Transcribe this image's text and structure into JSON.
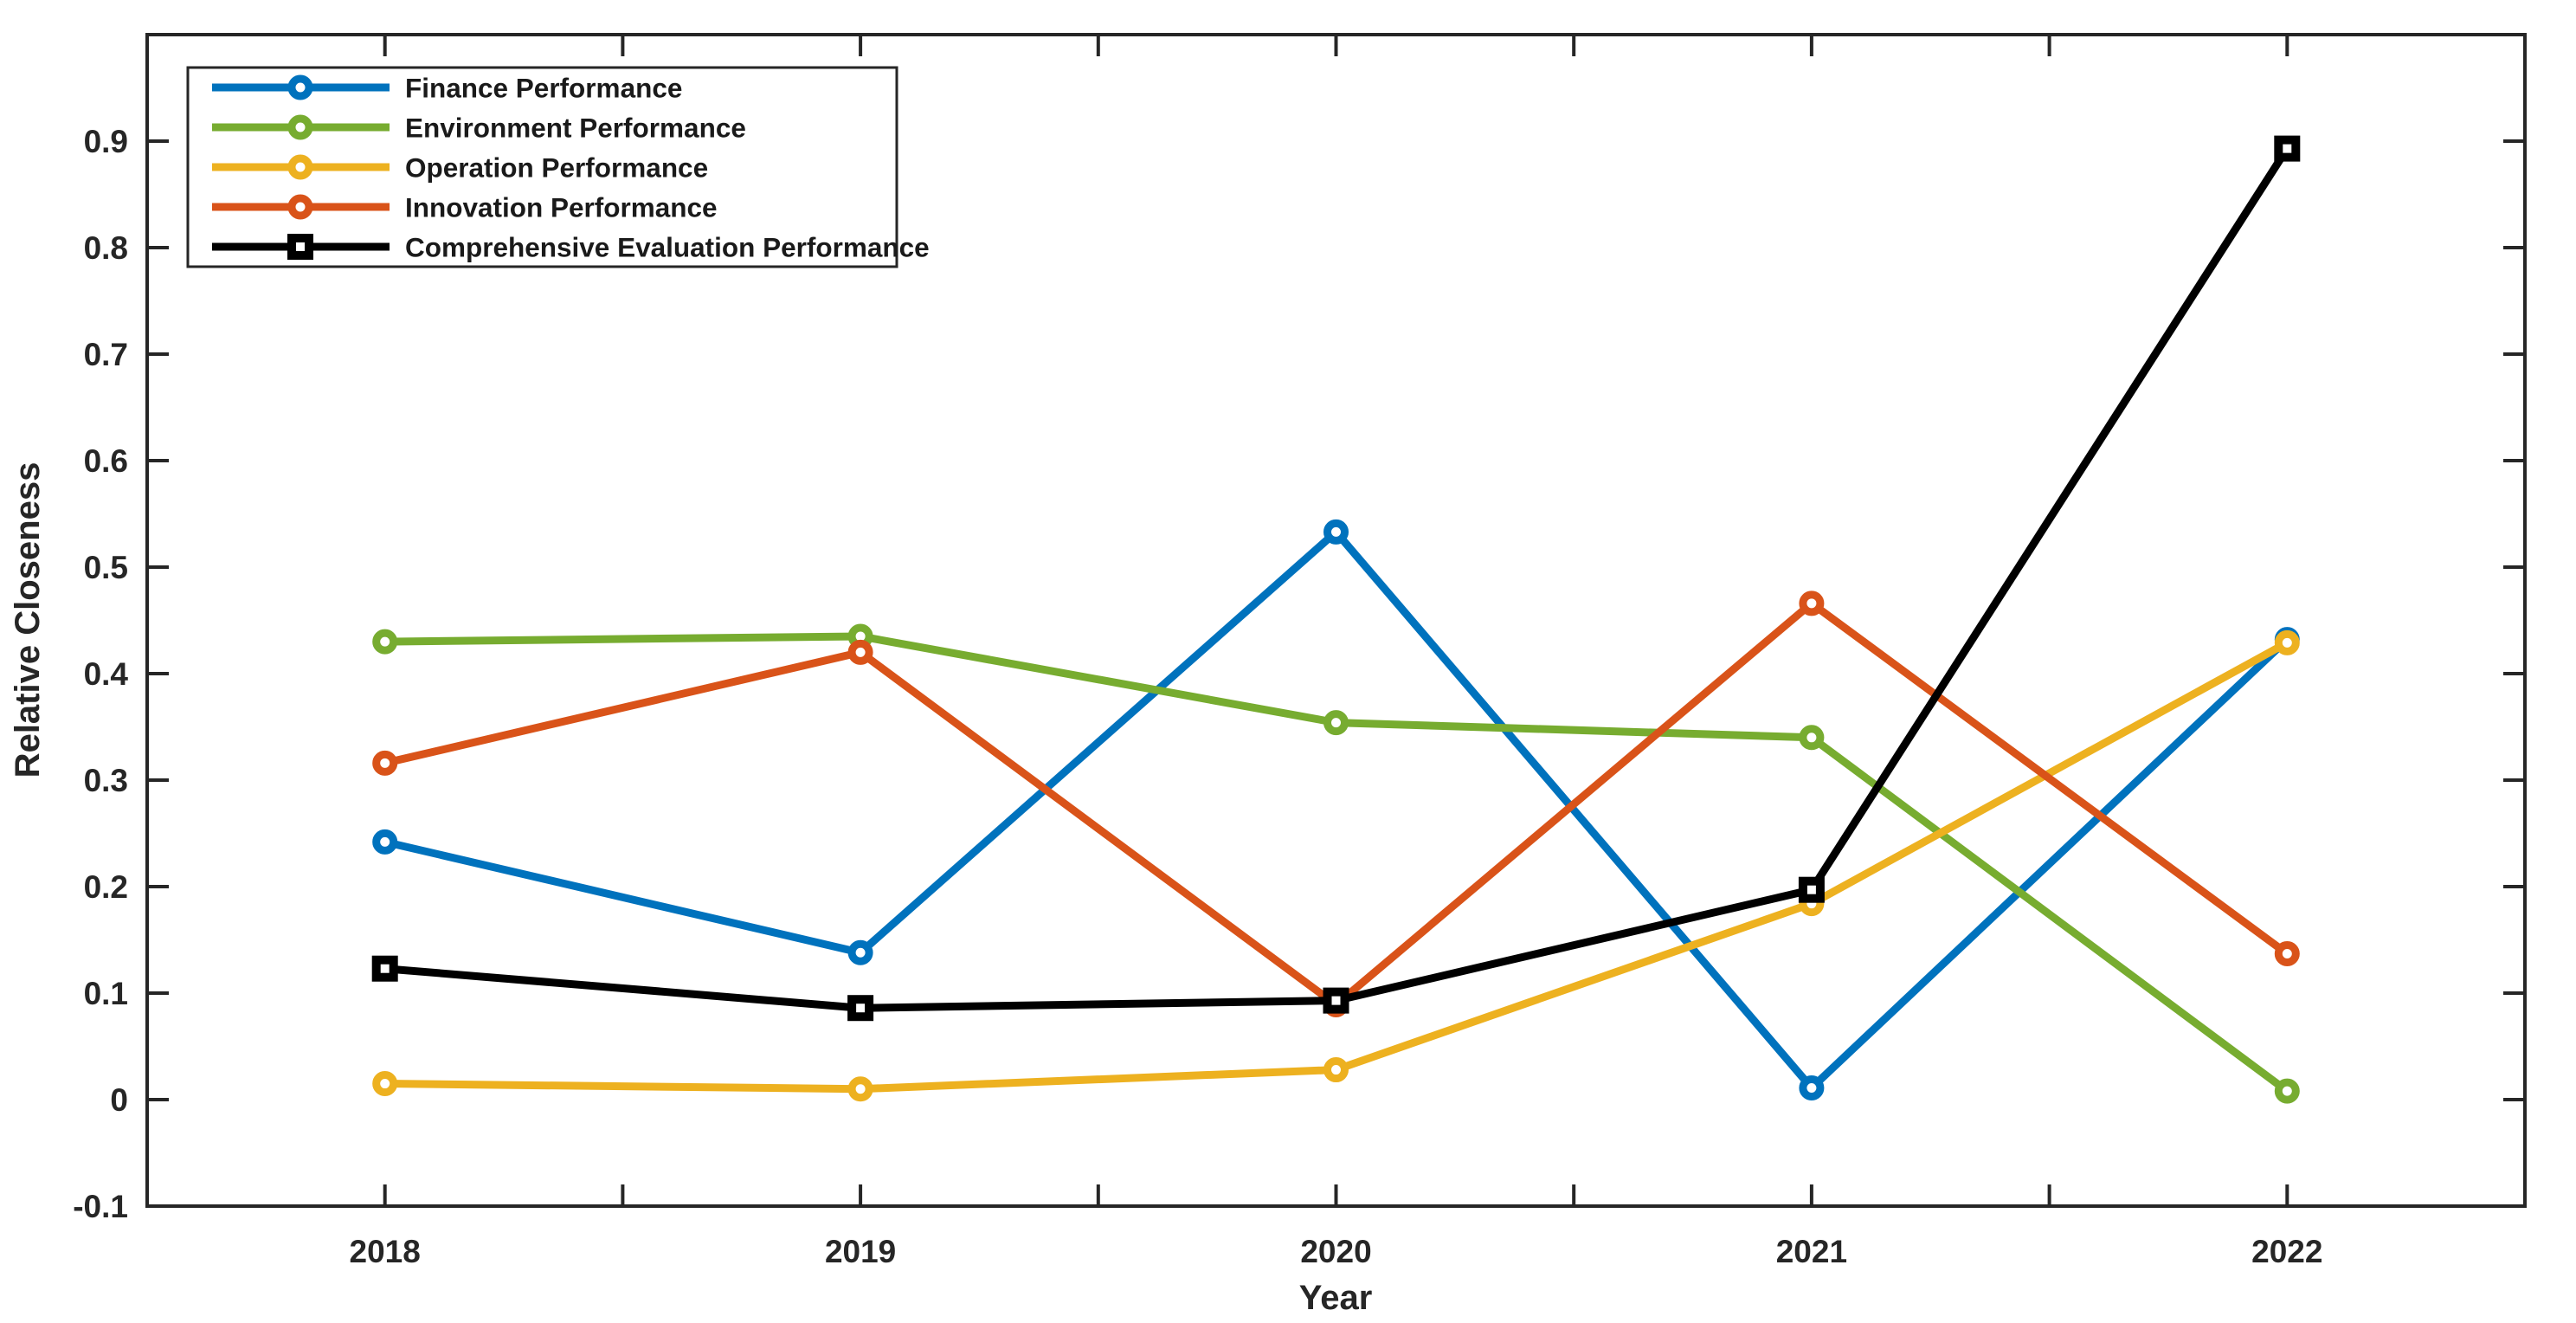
{
  "figure": {
    "background": "#ffffff",
    "axis_color": "#262626",
    "tick_label_color": "#262626"
  },
  "chart_data": {
    "type": "line",
    "title": "",
    "xlabel": "Year",
    "ylabel": "Relative Closeness",
    "x": [
      2018,
      2019,
      2020,
      2021,
      2022
    ],
    "xtick_labels": [
      "2018",
      "2019",
      "2020",
      "2021",
      "2022"
    ],
    "minor_xtick_step": 0.5,
    "xlim": [
      2017.5,
      2022.5
    ],
    "ylim": [
      -0.1,
      1.0
    ],
    "yticks": [
      -0.1,
      0,
      0.1,
      0.2,
      0.3,
      0.4,
      0.5,
      0.6,
      0.7,
      0.8,
      0.9
    ],
    "ytick_labels": [
      "-0.1",
      "0",
      "0.1",
      "0.2",
      "0.3",
      "0.4",
      "0.5",
      "0.6",
      "0.7",
      "0.8",
      "0.9"
    ],
    "grid": false,
    "legend_position": "top-left",
    "series": [
      {
        "name": "Finance Performance",
        "color": "#0072BD",
        "marker": "circle",
        "values": [
          0.242,
          0.138,
          0.533,
          0.011,
          0.432
        ]
      },
      {
        "name": "Environment Performance",
        "color": "#77AC30",
        "marker": "circle",
        "values": [
          0.43,
          0.435,
          0.354,
          0.34,
          0.008
        ]
      },
      {
        "name": "Operation Performance",
        "color": "#EDB120",
        "marker": "circle",
        "values": [
          0.015,
          0.01,
          0.028,
          0.184,
          0.429
        ]
      },
      {
        "name": "Innovation Performance",
        "color": "#D95319",
        "marker": "circle",
        "values": [
          0.316,
          0.42,
          0.089,
          0.466,
          0.137
        ]
      },
      {
        "name": " Comprehensive Evaluation Performance",
        "color": "#000000",
        "marker": "square",
        "values": [
          0.123,
          0.086,
          0.093,
          0.197,
          0.893
        ]
      }
    ]
  }
}
